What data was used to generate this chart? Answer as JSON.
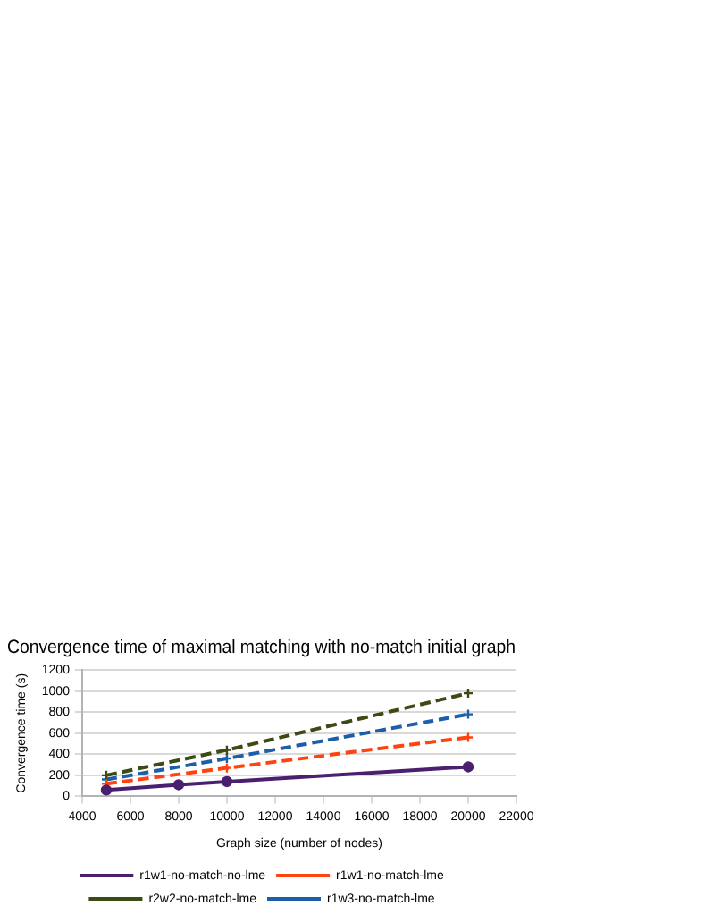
{
  "chart_data": {
    "type": "line",
    "title": "Convergence time of maximal matching with no-match initial graph",
    "xlabel": "Graph size (number of nodes)",
    "ylabel": "Convergence time (s)",
    "xlim": [
      4000,
      22000
    ],
    "xticks": [
      4000,
      6000,
      8000,
      10000,
      12000,
      14000,
      16000,
      18000,
      20000,
      22000
    ],
    "ylim": [
      0,
      1200
    ],
    "yticks": [
      0,
      200,
      400,
      600,
      800,
      1000,
      1200
    ],
    "grid": "y",
    "legend": "bottom",
    "series": [
      {
        "name": "r1w1-no-match-no-lme",
        "color": "#4b1f6f",
        "x": [
          5000,
          8000,
          10000,
          20000
        ],
        "values": [
          60,
          110,
          140,
          280
        ],
        "marker": "circle",
        "line_style": "solid"
      },
      {
        "name": "r1w1-no-match-lme",
        "color": "#ff420e",
        "x": [
          5000,
          10000,
          20000
        ],
        "values": [
          120,
          270,
          560
        ],
        "marker": "cross",
        "line_style": "dashed"
      },
      {
        "name": "r2w2-no-match-lme",
        "color": "#3c4a14",
        "x": [
          5000,
          10000,
          20000
        ],
        "values": [
          200,
          440,
          980
        ],
        "marker": "cross",
        "line_style": "dashed"
      },
      {
        "name": "r1w3-no-match-lme",
        "color": "#1c5fa8",
        "x": [
          5000,
          10000,
          20000
        ],
        "values": [
          160,
          360,
          780
        ],
        "marker": "cross",
        "line_style": "dashed"
      }
    ]
  }
}
